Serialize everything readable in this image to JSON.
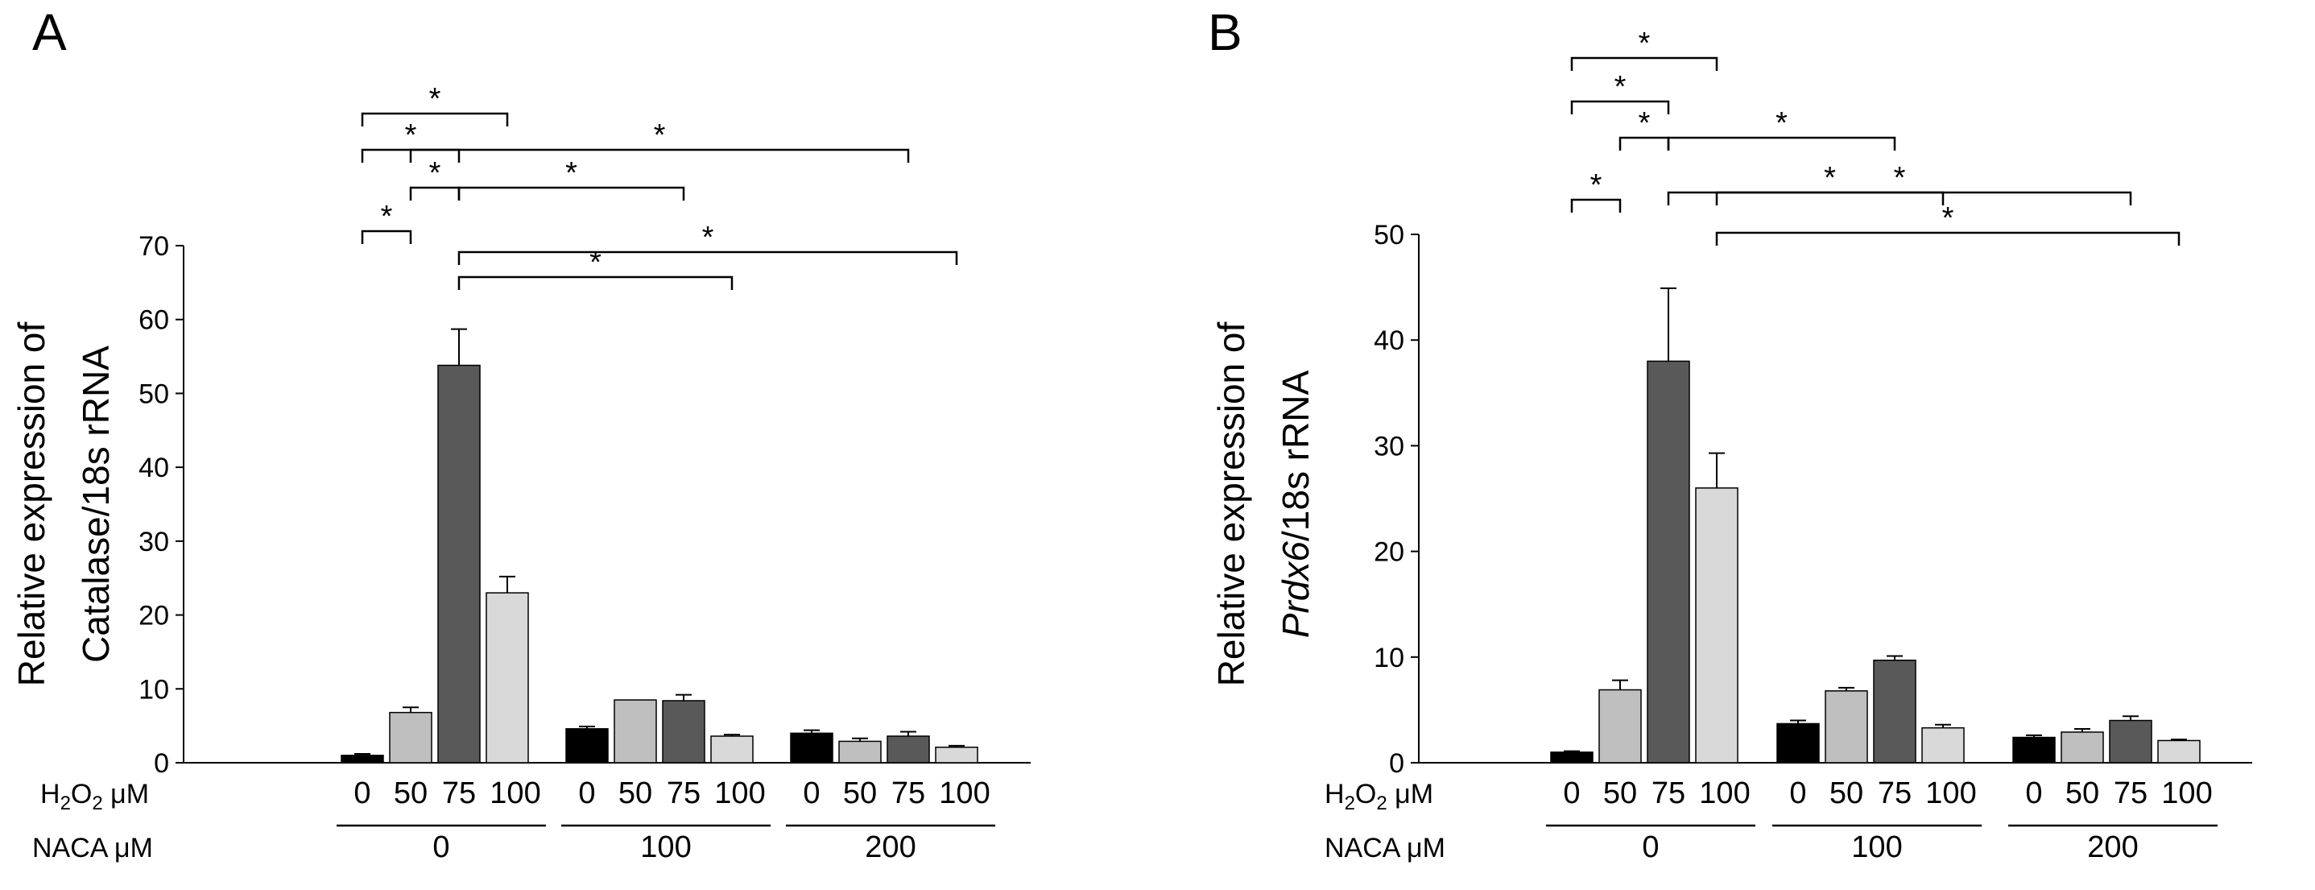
{
  "figure": {
    "panel_labels": [
      "A",
      "B"
    ]
  },
  "colors": {
    "h2o2_0": "#000000",
    "h2o2_50": "#BFBFBF",
    "h2o2_75": "#595959",
    "h2o2_100": "#D9D9D9",
    "axis": "#000000"
  },
  "chart_data": [
    {
      "type": "bar",
      "panel": "A",
      "ylabel_line1": "Relative expression of",
      "ylabel_line2": "Catalase/18s rRNA",
      "ylim": [
        0,
        70
      ],
      "yticks": [
        0,
        10,
        20,
        30,
        40,
        50,
        60,
        70
      ],
      "row1_label": "H2O2 μM",
      "row2_label": "NACA μM",
      "groups": [
        {
          "naca": "0",
          "bars": [
            {
              "h2o2": "0",
              "value": 1,
              "error": 0.2
            },
            {
              "h2o2": "50",
              "value": 6.8,
              "error": 0.7
            },
            {
              "h2o2": "75",
              "value": 53.8,
              "error": 4.9
            },
            {
              "h2o2": "100",
              "value": 23,
              "error": 2.2
            }
          ]
        },
        {
          "naca": "100",
          "bars": [
            {
              "h2o2": "0",
              "value": 4.6,
              "error": 0.3
            },
            {
              "h2o2": "50",
              "value": 8.5,
              "error": 0
            },
            {
              "h2o2": "75",
              "value": 8.4,
              "error": 0.8
            },
            {
              "h2o2": "100",
              "value": 3.6,
              "error": 0.2
            }
          ]
        },
        {
          "naca": "200",
          "bars": [
            {
              "h2o2": "0",
              "value": 4,
              "error": 0.4
            },
            {
              "h2o2": "50",
              "value": 2.9,
              "error": 0.4
            },
            {
              "h2o2": "75",
              "value": 3.6,
              "error": 0.6
            },
            {
              "h2o2": "100",
              "value": 2.1,
              "error": 0.2
            }
          ]
        }
      ],
      "significance": [
        {
          "from": [
            0,
            0
          ],
          "to": [
            0,
            1
          ],
          "label": "*"
        },
        {
          "from": [
            0,
            1
          ],
          "to": [
            0,
            2
          ],
          "label": "*"
        },
        {
          "from": [
            0,
            0
          ],
          "to": [
            0,
            2
          ],
          "label": "*"
        },
        {
          "from": [
            0,
            0
          ],
          "to": [
            0,
            3
          ],
          "label": "*"
        },
        {
          "from": [
            0,
            2
          ],
          "to": [
            1,
            2
          ],
          "label": "*"
        },
        {
          "from": [
            0,
            1
          ],
          "to": [
            2,
            2
          ],
          "label": "*"
        },
        {
          "from": [
            0,
            2
          ],
          "to": [
            1,
            3
          ],
          "label": "*"
        },
        {
          "from": [
            0,
            2
          ],
          "to": [
            2,
            3
          ],
          "label": "*"
        }
      ]
    },
    {
      "type": "bar",
      "panel": "B",
      "ylabel_line1": "Relative expression of",
      "ylabel_gene": "Prdx6",
      "ylabel_suffix": "/18s rRNA",
      "ylim": [
        0,
        50
      ],
      "yticks": [
        0,
        10,
        20,
        30,
        40,
        50
      ],
      "row1_label": "H2O2 μM",
      "row2_label": "NACA μM",
      "groups": [
        {
          "naca": "0",
          "bars": [
            {
              "h2o2": "0",
              "value": 1,
              "error": 0.1
            },
            {
              "h2o2": "50",
              "value": 6.9,
              "error": 0.9
            },
            {
              "h2o2": "75",
              "value": 38,
              "error": 6.9
            },
            {
              "h2o2": "100",
              "value": 26,
              "error": 3.3
            }
          ]
        },
        {
          "naca": "100",
          "bars": [
            {
              "h2o2": "0",
              "value": 3.7,
              "error": 0.3
            },
            {
              "h2o2": "50",
              "value": 6.8,
              "error": 0.3
            },
            {
              "h2o2": "75",
              "value": 9.7,
              "error": 0.4
            },
            {
              "h2o2": "100",
              "value": 3.3,
              "error": 0.3
            }
          ]
        },
        {
          "naca": "200",
          "bars": [
            {
              "h2o2": "0",
              "value": 2.4,
              "error": 0.2
            },
            {
              "h2o2": "50",
              "value": 2.9,
              "error": 0.3
            },
            {
              "h2o2": "75",
              "value": 4,
              "error": 0.4
            },
            {
              "h2o2": "100",
              "value": 2.1,
              "error": 0.1
            }
          ]
        }
      ],
      "significance": [
        {
          "from": [
            0,
            0
          ],
          "to": [
            0,
            1
          ],
          "label": "*"
        },
        {
          "from": [
            0,
            1
          ],
          "to": [
            0,
            2
          ],
          "label": "*"
        },
        {
          "from": [
            0,
            0
          ],
          "to": [
            0,
            2
          ],
          "label": "*"
        },
        {
          "from": [
            0,
            0
          ],
          "to": [
            0,
            3
          ],
          "label": "*"
        },
        {
          "from": [
            0,
            3
          ],
          "to": [
            1,
            3
          ],
          "label": "*"
        },
        {
          "from": [
            0,
            2
          ],
          "to": [
            1,
            2
          ],
          "label": "*"
        },
        {
          "from": [
            0,
            3
          ],
          "to": [
            2,
            3
          ],
          "label": "*"
        },
        {
          "from": [
            0,
            2
          ],
          "to": [
            2,
            2
          ],
          "label": "*"
        }
      ]
    }
  ]
}
